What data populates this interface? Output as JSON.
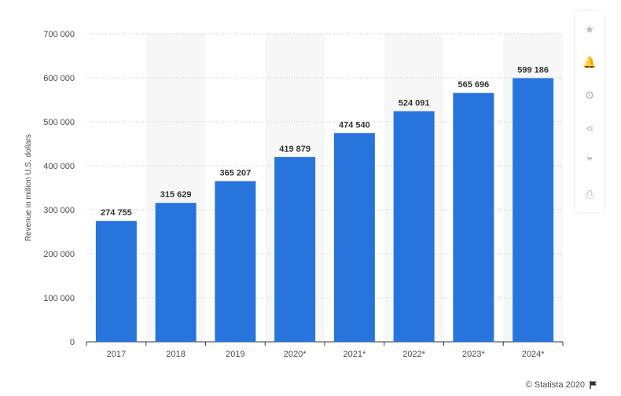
{
  "chart_data": {
    "type": "bar",
    "categories": [
      "2017",
      "2018",
      "2019",
      "2020*",
      "2021*",
      "2022*",
      "2023*",
      "2024*"
    ],
    "values": [
      274755,
      315629,
      365207,
      419879,
      474540,
      524091,
      565696,
      599186
    ],
    "value_labels": [
      "274 755",
      "315 629",
      "365 207",
      "419 879",
      "474 540",
      "524 091",
      "565 696",
      "599 186"
    ],
    "ylabel": "Revenue in million U.S. dollars",
    "ylim": [
      0,
      700000
    ],
    "yticks": [
      0,
      100000,
      200000,
      300000,
      400000,
      500000,
      600000,
      700000
    ],
    "ytick_labels": [
      "0",
      "100 000",
      "200 000",
      "300 000",
      "400 000",
      "500 000",
      "600 000",
      "700 000"
    ],
    "grid": true,
    "bar_color": "#2874dd",
    "alt_band_color": "#f7f7f7"
  },
  "toolbar": {
    "buttons": [
      {
        "name": "star-icon",
        "glyph": "★"
      },
      {
        "name": "bell-icon",
        "glyph": "🔔"
      },
      {
        "name": "gear-icon",
        "glyph": "⚙"
      },
      {
        "name": "share-icon",
        "glyph": "⋖"
      },
      {
        "name": "quote-icon",
        "glyph": "❞"
      },
      {
        "name": "print-icon",
        "glyph": "⎙"
      }
    ]
  },
  "footer": {
    "copyright": "© Statista 2020"
  }
}
